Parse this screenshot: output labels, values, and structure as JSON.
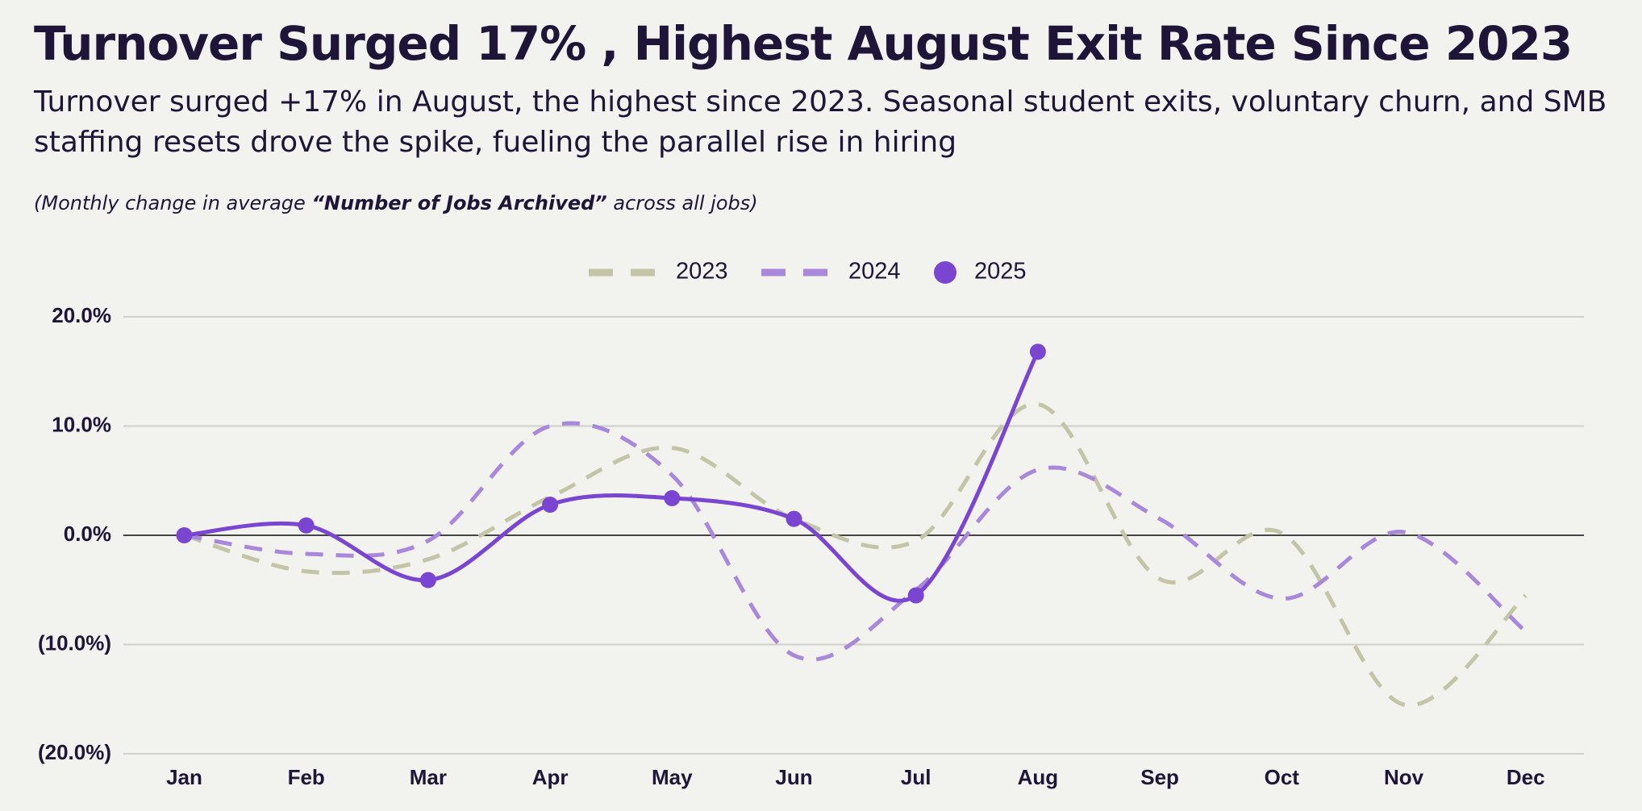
{
  "chart_data": {
    "type": "line",
    "title": "Turnover Surged 17% , Highest August Exit Rate Since 2023",
    "subtitle": "Turnover surged +17% in August, the highest since 2023. Seasonal student exits, voluntary churn, and SMB staffing resets drove the spike, fueling the parallel rise in hiring",
    "note": [
      "(Monthly change in average ",
      "“Number of Jobs Archived”",
      " across all jobs)"
    ],
    "categories": [
      "Jan",
      "Feb",
      "Mar",
      "Apr",
      "May",
      "Jun",
      "Jul",
      "Aug",
      "Sep",
      "Oct",
      "Nov",
      "Dec"
    ],
    "series": [
      {
        "name": "2023",
        "color": "#c4c4a6",
        "dash": true,
        "markers": false,
        "values": [
          0,
          -3.3,
          -2.2,
          3.5,
          8,
          1.5,
          -0.5,
          12,
          -4,
          0.2,
          -15.5,
          -5.5
        ]
      },
      {
        "name": "2024",
        "color": "#a987db",
        "dash": true,
        "markers": false,
        "values": [
          0,
          -1.7,
          -0.5,
          10,
          5.5,
          -11,
          -5,
          6,
          1.5,
          -5.8,
          0.3,
          -8.8
        ]
      },
      {
        "name": "2025",
        "color": "#7a45d0",
        "dash": false,
        "markers": true,
        "values": [
          0,
          0.9,
          -4.1,
          2.8,
          3.4,
          1.5,
          -5.5,
          16.8,
          null,
          null,
          null,
          null
        ]
      }
    ],
    "ylim": [
      -20,
      20
    ],
    "yticks": [
      {
        "value": -20,
        "label": "(20.0%)"
      },
      {
        "value": -10,
        "label": "(10.0%)"
      },
      {
        "value": 0,
        "label": "0.0%"
      },
      {
        "value": 10,
        "label": "10.0%"
      },
      {
        "value": 20,
        "label": "20.0%"
      }
    ],
    "grid": true,
    "legend": "top"
  }
}
